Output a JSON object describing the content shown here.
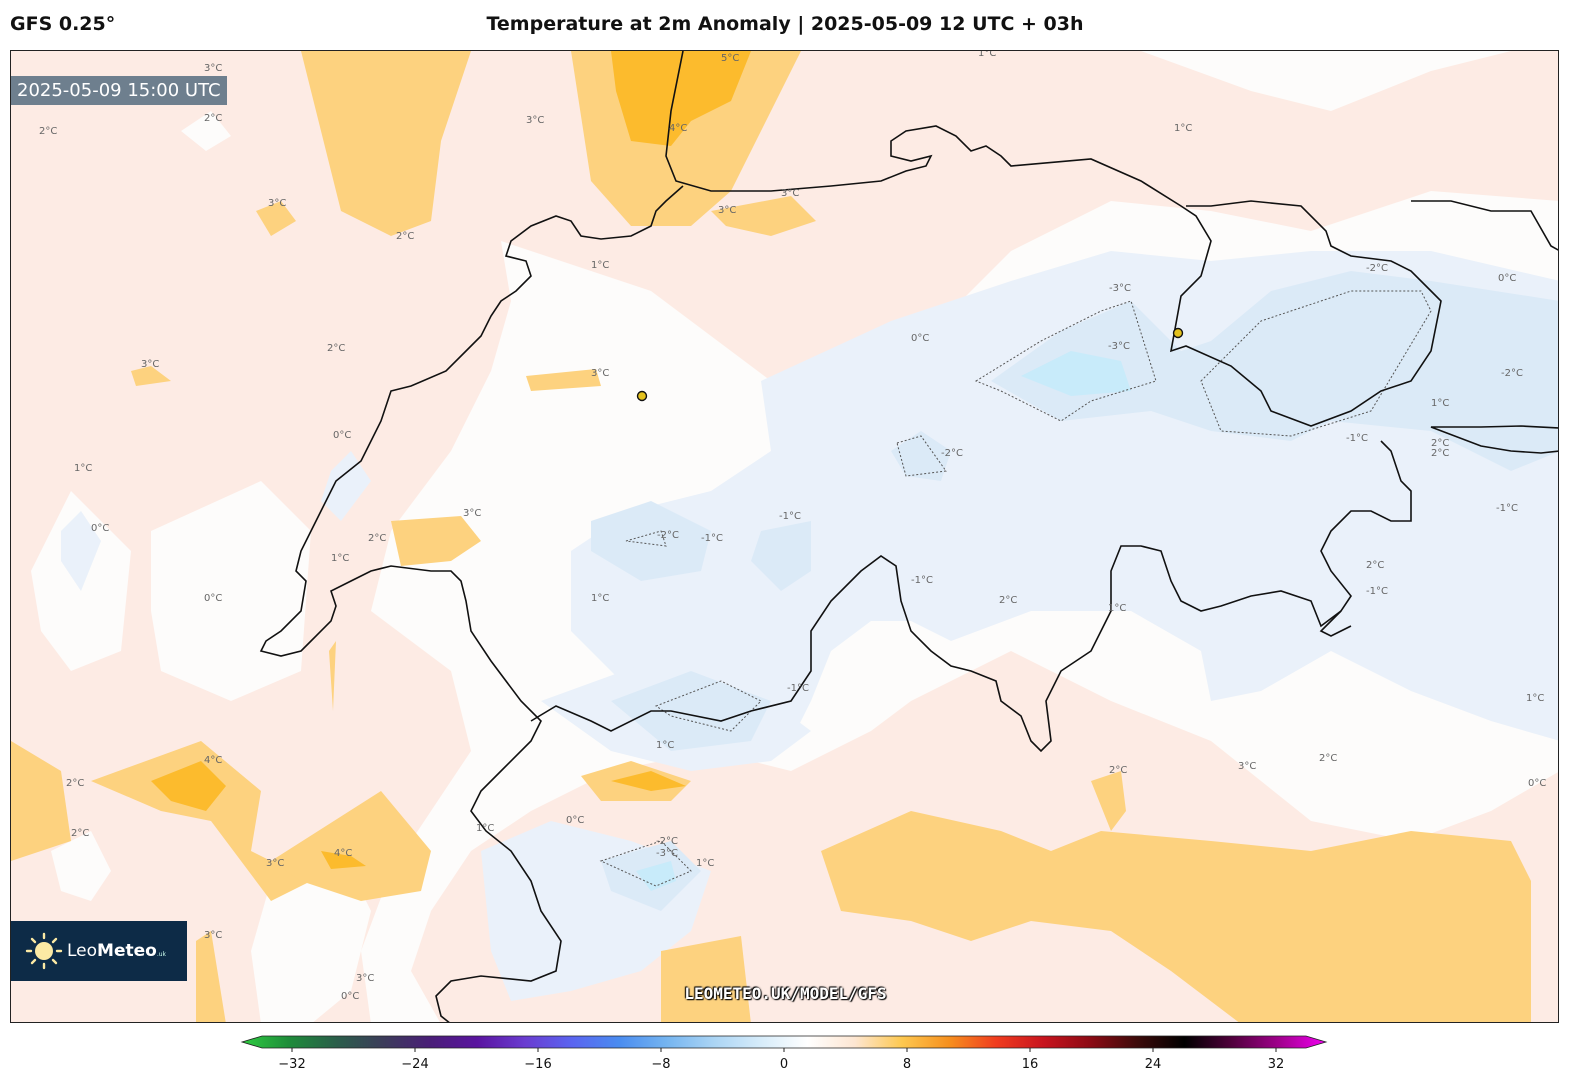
{
  "header": {
    "model": "GFS 0.25°",
    "title": "Temperature at 2m Anomaly | 2025-05-09 12 UTC + 03h"
  },
  "map": {
    "valid_time": "2025-05-09 15:00 UTC",
    "watermark": "LEOMETEO.UK/MODEL/GFS",
    "brand": {
      "name_light": "Leo",
      "name_bold": "Meteo",
      "suffix": ".uk"
    },
    "contour_labels": [
      "3°C",
      "2°C",
      "2°C",
      "3°C",
      "3°C",
      "2°C",
      "1°C",
      "2°C",
      "3°C",
      "3°C",
      "0°C",
      "1°C",
      "0°C",
      "2°C",
      "1°C",
      "3°C",
      "0°C",
      "-2°C",
      "-1°C",
      "-1°C",
      "1°C",
      "-1°C",
      "-2°C",
      "-3°C",
      "-3°C",
      "0°C",
      "-2°C",
      "-2°C",
      "0°C",
      "-1°C",
      "-1°C",
      "1°C",
      "2°C",
      "2°C",
      "2°C",
      "1°C",
      "2°C",
      "-1°C",
      "1°C",
      "2°C",
      "3°C",
      "2°C",
      "1°C",
      "0°C",
      "-1°C",
      "1°C",
      "4°C",
      "4°C",
      "3°C",
      "2°C",
      "0°C",
      "-2°C",
      "-3°C",
      "1°C",
      "3°C",
      "3°C",
      "2°C",
      "5°C",
      "4°C",
      "3°C",
      "1°C",
      "1°C",
      "3°C",
      "0°C"
    ],
    "colors": {
      "neg_strong": "#c8ebfa",
      "neg_mid": "#dbeaf7",
      "neg_light": "#eaf1fa",
      "neutral": "#fdfcfb",
      "pos_light": "#fdebe4",
      "pos_mid": "#fdd27f",
      "pos_strong": "#fcbb2d",
      "border_line": "#111111",
      "city_marker": "#e4c21e"
    }
  },
  "colorbar": {
    "ticks": [
      -32,
      -24,
      -16,
      -8,
      0,
      8,
      16,
      24,
      32
    ],
    "range": [
      -32,
      32
    ],
    "colors": [
      "#2ecc40",
      "#1e8c3a",
      "#2a5e4a",
      "#3c3c5a",
      "#4a1e78",
      "#5a14a0",
      "#6a3cd0",
      "#5a64f0",
      "#4a8cf0",
      "#74b4f0",
      "#aad4f4",
      "#d6ecfa",
      "#ffffff",
      "#fde6d2",
      "#fdc850",
      "#f6901e",
      "#f03c1e",
      "#c8141e",
      "#8c0a14",
      "#3c0a0a",
      "#000000",
      "#50003c",
      "#a0008c",
      "#f000f0"
    ]
  }
}
